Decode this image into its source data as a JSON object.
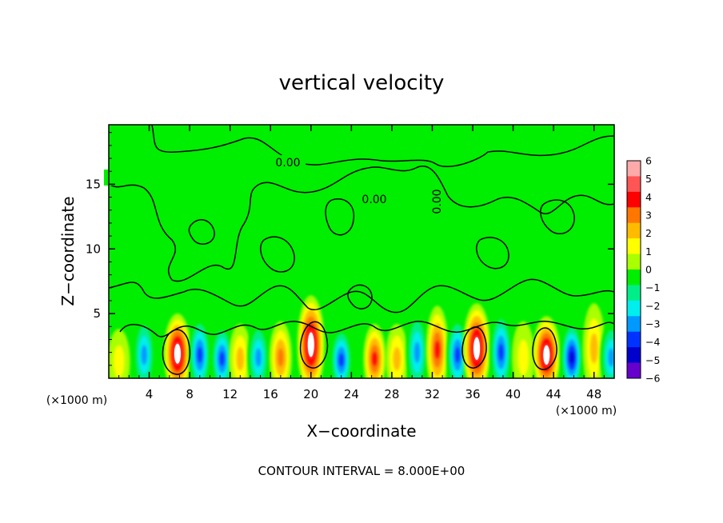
{
  "chart_data": {
    "type": "heatmap",
    "title": "vertical velocity",
    "xlabel": "X−coordinate",
    "ylabel": "Z−coordinate",
    "x_unit": "(×1000 m)",
    "x_unit_right": "(×1000 m)",
    "xlim": [
      0,
      50
    ],
    "ylim": [
      0,
      19.6
    ],
    "x_ticks": [
      4,
      8,
      12,
      16,
      20,
      24,
      28,
      32,
      36,
      40,
      44,
      48
    ],
    "y_ticks": [
      5,
      10,
      15
    ],
    "colorbar": {
      "ticks": [
        6,
        5,
        4,
        3,
        2,
        1,
        0,
        -1,
        -2,
        -3,
        -4,
        -5,
        -6
      ],
      "tick_labels": [
        "6",
        "5",
        "4",
        "3",
        "2",
        "1",
        "0",
        "−1",
        "−2",
        "−3",
        "−4",
        "−5",
        "−6"
      ],
      "colors": [
        "#ffaaaa",
        "#ff5555",
        "#ff0000",
        "#ff7700",
        "#ffbb00",
        "#ffff00",
        "#aaff00",
        "#00ee00",
        "#00ee88",
        "#00eeee",
        "#0099ff",
        "#0033ff",
        "#0000cc",
        "#6600cc"
      ]
    },
    "contour_labels": [
      "0.00",
      "0.00",
      "0.00"
    ],
    "footer": "CONTOUR INTERVAL = 8.000E+00",
    "features": [
      {
        "x": 1.0,
        "z": 1.3,
        "w": 1.0
      },
      {
        "x": 3.5,
        "z": 1.8,
        "w": -3.0
      },
      {
        "x": 6.8,
        "z": 1.9,
        "w": 5.8
      },
      {
        "x": 9.0,
        "z": 1.8,
        "w": -4.0
      },
      {
        "x": 11.2,
        "z": 1.5,
        "w": -3.5
      },
      {
        "x": 13.0,
        "z": 1.5,
        "w": 2.0
      },
      {
        "x": 14.8,
        "z": 1.6,
        "w": -3.0
      },
      {
        "x": 17.0,
        "z": 1.6,
        "w": 2.5
      },
      {
        "x": 20.0,
        "z": 2.6,
        "w": 6.0
      },
      {
        "x": 23.0,
        "z": 1.4,
        "w": -3.5
      },
      {
        "x": 26.3,
        "z": 1.5,
        "w": 3.8
      },
      {
        "x": 28.5,
        "z": 1.5,
        "w": 1.5
      },
      {
        "x": 30.5,
        "z": 2.0,
        "w": -3.0
      },
      {
        "x": 32.5,
        "z": 2.2,
        "w": 3.8
      },
      {
        "x": 34.5,
        "z": 1.8,
        "w": -3.5
      },
      {
        "x": 36.4,
        "z": 2.3,
        "w": 5.8
      },
      {
        "x": 38.8,
        "z": 2.0,
        "w": -3.5
      },
      {
        "x": 41.0,
        "z": 1.6,
        "w": 1.0
      },
      {
        "x": 43.3,
        "z": 1.8,
        "w": 6.0
      },
      {
        "x": 45.8,
        "z": 1.6,
        "w": -4.5
      },
      {
        "x": 48.0,
        "z": 2.3,
        "w": 2.0
      },
      {
        "x": 49.7,
        "z": 1.6,
        "w": -2.5
      }
    ]
  }
}
